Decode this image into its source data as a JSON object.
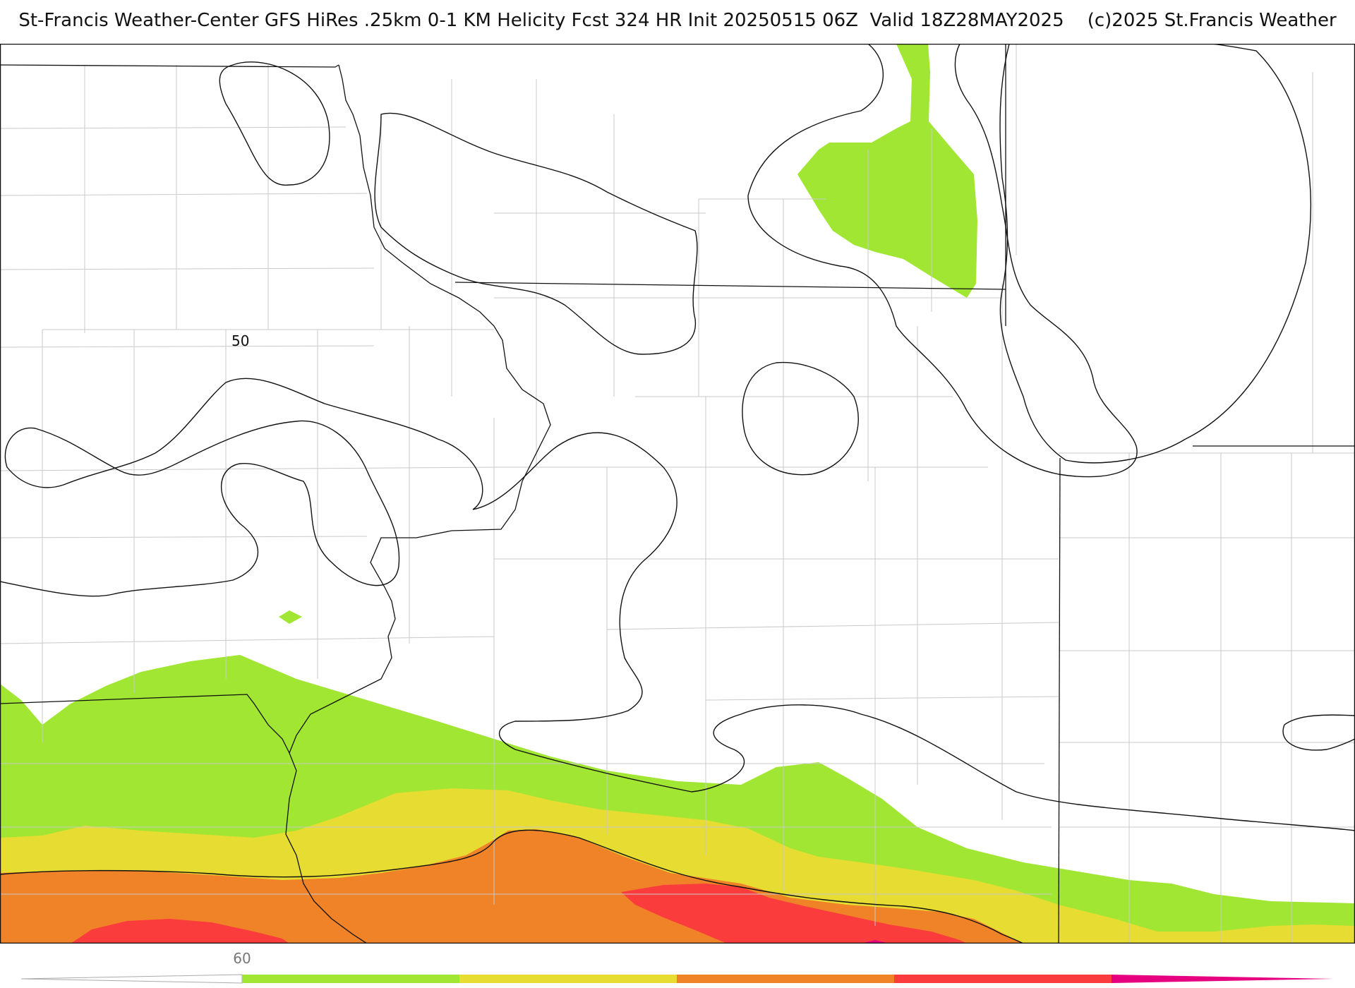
{
  "header": {
    "title": "St-Francis Weather-Center GFS HiRes .25km 0-1 KM Helicity Fcst 324 HR Init 20250515 06Z  Valid 18Z28MAY2025    (c)2025 St.Francis Weather"
  },
  "map": {
    "contour_label": "50",
    "fill_colors": {
      "band_60": "#a0e632",
      "band_100": "#e6dc32",
      "band_150": "#f08228",
      "band_200": "#fa3c3c",
      "band_300": "#e6007f"
    }
  },
  "legend": {
    "tick_label": "60",
    "segments": [
      "#a0e632",
      "#e6dc32",
      "#f08228",
      "#fa3c3c",
      "#e6007f"
    ]
  }
}
